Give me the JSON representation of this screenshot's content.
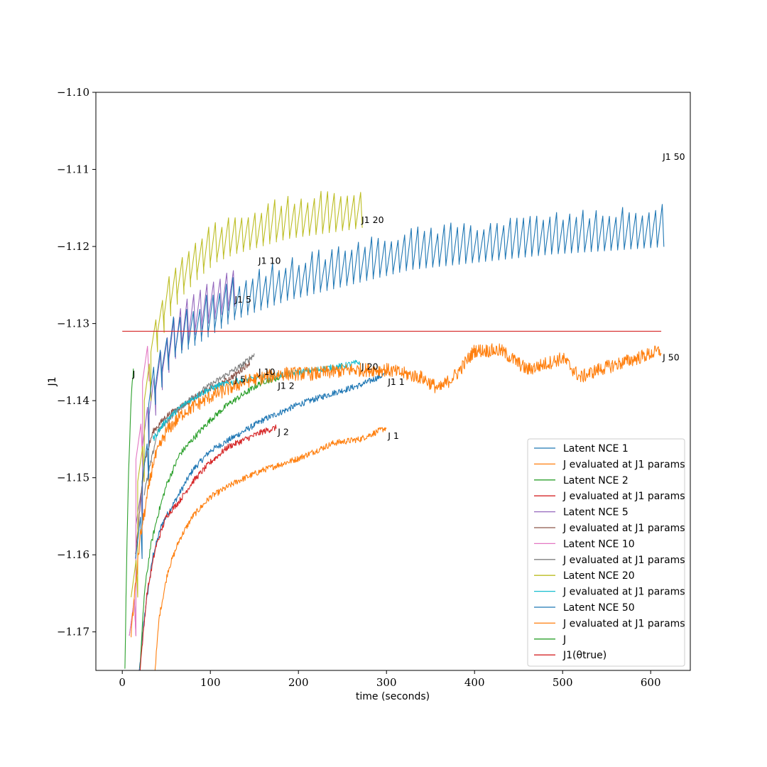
{
  "chart_data": {
    "type": "line",
    "title": "",
    "xlabel": "time (seconds)",
    "ylabel": "J1",
    "xlim": [
      -30,
      645
    ],
    "ylim": [
      -1.175,
      -1.1
    ],
    "x_ticks": [
      0,
      100,
      200,
      300,
      400,
      500,
      600
    ],
    "x_tick_labels": [
      "0",
      "100",
      "200",
      "300",
      "400",
      "500",
      "600"
    ],
    "y_ticks": [
      -1.17,
      -1.16,
      -1.15,
      -1.14,
      -1.13,
      -1.12,
      -1.11,
      -1.1
    ],
    "y_tick_labels": [
      "−1.17",
      "−1.16",
      "−1.15",
      "−1.14",
      "−1.13",
      "−1.12",
      "−1.11",
      "−1.10"
    ],
    "grid": false,
    "legend_position": "lower-right",
    "series": [
      {
        "name": "Latent NCE 1",
        "color": "#1f77b4",
        "style": "smooth",
        "x": [
          17,
          25,
          35,
          45,
          60,
          80,
          100,
          130,
          160,
          200,
          240,
          270,
          300
        ],
        "y": [
          -1.178,
          -1.168,
          -1.16,
          -1.156,
          -1.153,
          -1.149,
          -1.1465,
          -1.1445,
          -1.1425,
          -1.1405,
          -1.139,
          -1.138,
          -1.1365
        ]
      },
      {
        "name": "J evaluated at J1 params",
        "color": "#ff7f0e",
        "style": "smooth",
        "x": [
          35,
          42,
          52,
          65,
          80,
          100,
          130,
          160,
          200,
          240,
          270,
          300
        ],
        "y": [
          -1.178,
          -1.168,
          -1.162,
          -1.158,
          -1.155,
          -1.1525,
          -1.1505,
          -1.149,
          -1.1475,
          -1.1455,
          -1.145,
          -1.1435
        ]
      },
      {
        "name": "Latent NCE 2",
        "color": "#2ca02c",
        "style": "smooth",
        "x": [
          20,
          25,
          32,
          40,
          50,
          65,
          80,
          100,
          120,
          140,
          160,
          180
        ],
        "y": [
          -1.175,
          -1.165,
          -1.159,
          -1.155,
          -1.151,
          -1.147,
          -1.145,
          -1.1425,
          -1.1405,
          -1.139,
          -1.1375,
          -1.137
        ]
      },
      {
        "name": "J evaluated at J1 params",
        "color": "#d62728",
        "style": "smooth",
        "x": [
          20,
          28,
          38,
          50,
          65,
          80,
          100,
          120,
          140,
          160,
          175
        ],
        "y": [
          -1.175,
          -1.165,
          -1.159,
          -1.155,
          -1.153,
          -1.1505,
          -1.148,
          -1.146,
          -1.145,
          -1.144,
          -1.1435
        ]
      },
      {
        "name": "Latent NCE 5",
        "color": "#9467bd",
        "style": "saw",
        "x": [
          8,
          20,
          35,
          50,
          70,
          90,
          110,
          125
        ],
        "y": [
          -1.17,
          -1.147,
          -1.139,
          -1.1345,
          -1.1315,
          -1.1295,
          -1.128,
          -1.127
        ]
      },
      {
        "name": "J evaluated at J1 params",
        "color": "#8c564b",
        "style": "smooth",
        "x": [
          15,
          25,
          35,
          50,
          70,
          90,
          110,
          130,
          145
        ],
        "y": [
          -1.16,
          -1.148,
          -1.144,
          -1.142,
          -1.1405,
          -1.139,
          -1.138,
          -1.1365,
          -1.135
        ]
      },
      {
        "name": "Latent NCE 10",
        "color": "#e377c2",
        "style": "saw",
        "x": [
          8,
          12,
          16,
          20,
          25
        ],
        "y": [
          -1.17,
          -1.155,
          -1.146,
          -1.14,
          -1.135
        ]
      },
      {
        "name": "J evaluated at J1 params",
        "color": "#7f7f7f",
        "style": "smooth",
        "x": [
          25,
          40,
          60,
          80,
          100,
          120,
          135,
          150
        ],
        "y": [
          -1.152,
          -1.144,
          -1.1415,
          -1.1395,
          -1.138,
          -1.1365,
          -1.1355,
          -1.134
        ]
      },
      {
        "name": "Latent NCE 20",
        "color": "#bcbd22",
        "style": "saw",
        "x": [
          10,
          20,
          30,
          45,
          60,
          80,
          100,
          120,
          150,
          180,
          210,
          240,
          270
        ],
        "y": [
          -1.165,
          -1.145,
          -1.134,
          -1.129,
          -1.126,
          -1.1235,
          -1.1215,
          -1.1205,
          -1.1195,
          -1.1185,
          -1.118,
          -1.1175,
          -1.117
        ]
      },
      {
        "name": "J evaluated at J1 params",
        "color": "#17becf",
        "style": "smooth",
        "x": [
          35,
          50,
          70,
          90,
          110,
          130,
          160,
          190,
          220,
          250,
          270
        ],
        "y": [
          -1.145,
          -1.1425,
          -1.1405,
          -1.139,
          -1.138,
          -1.1375,
          -1.137,
          -1.1365,
          -1.136,
          -1.1355,
          -1.135
        ]
      },
      {
        "name": "Latent NCE 50",
        "color": "#1f77b4",
        "style": "saw",
        "x": [
          15,
          30,
          50,
          80,
          120,
          180,
          250,
          320,
          400,
          480,
          550,
          612
        ],
        "y": [
          -1.16,
          -1.14,
          -1.134,
          -1.132,
          -1.129,
          -1.1265,
          -1.1245,
          -1.1225,
          -1.1215,
          -1.1205,
          -1.12,
          -1.1195
        ]
      },
      {
        "name": "J evaluated at J1 params",
        "color": "#ff7f0e",
        "style": "noisy",
        "x": [
          10,
          20,
          35,
          50,
          70,
          100,
          140,
          180,
          220,
          260,
          300,
          340,
          360,
          380,
          400,
          430,
          460,
          500,
          520,
          540,
          570,
          612
        ],
        "y": [
          -1.17,
          -1.158,
          -1.148,
          -1.144,
          -1.1415,
          -1.1395,
          -1.1375,
          -1.1365,
          -1.1365,
          -1.136,
          -1.136,
          -1.137,
          -1.1385,
          -1.1365,
          -1.1335,
          -1.1335,
          -1.136,
          -1.1345,
          -1.137,
          -1.136,
          -1.135,
          -1.1335
        ]
      },
      {
        "name": "J",
        "color": "#2ca02c",
        "style": "smooth",
        "x": [
          3,
          5,
          7,
          9,
          11,
          13
        ],
        "y": [
          -1.175,
          -1.16,
          -1.15,
          -1.143,
          -1.138,
          -1.1355
        ]
      },
      {
        "name": "J1(θtrue)",
        "color": "#d62728",
        "style": "flat",
        "x": [
          0,
          612
        ],
        "y": [
          -1.131,
          -1.131
        ]
      }
    ],
    "annotations": [
      {
        "text": "J1 50",
        "x": 612,
        "y": -1.1083
      },
      {
        "text": "J1 20",
        "x": 270,
        "y": -1.1165
      },
      {
        "text": "J1 10",
        "x": 153,
        "y": -1.1218
      },
      {
        "text": "J1 5",
        "x": 126,
        "y": -1.1268
      },
      {
        "text": "J1 1",
        "x": 300,
        "y": -1.1375
      },
      {
        "text": "J1 2",
        "x": 175,
        "y": -1.138
      },
      {
        "text": "J 50",
        "x": 612,
        "y": -1.1343
      },
      {
        "text": "J 20",
        "x": 270,
        "y": -1.1355
      },
      {
        "text": "J 10",
        "x": 153,
        "y": -1.1362
      },
      {
        "text": "J 5",
        "x": 126,
        "y": -1.1372
      },
      {
        "text": "J 2",
        "x": 175,
        "y": -1.144
      },
      {
        "text": "J 1",
        "x": 300,
        "y": -1.1445
      },
      {
        "text": "J",
        "x": 10,
        "y": -1.1365
      }
    ],
    "legend": [
      {
        "label": "Latent NCE 1",
        "color": "#1f77b4"
      },
      {
        "label": "J evaluated at J1 params",
        "color": "#ff7f0e"
      },
      {
        "label": "Latent NCE 2",
        "color": "#2ca02c"
      },
      {
        "label": "J evaluated at J1 params",
        "color": "#d62728"
      },
      {
        "label": "Latent NCE 5",
        "color": "#9467bd"
      },
      {
        "label": "J evaluated at J1 params",
        "color": "#8c564b"
      },
      {
        "label": "Latent NCE 10",
        "color": "#e377c2"
      },
      {
        "label": "J evaluated at J1 params",
        "color": "#7f7f7f"
      },
      {
        "label": "Latent NCE 20",
        "color": "#bcbd22"
      },
      {
        "label": "J evaluated at J1 params",
        "color": "#17becf"
      },
      {
        "label": "Latent NCE 50",
        "color": "#1f77b4"
      },
      {
        "label": "J evaluated at J1 params",
        "color": "#ff7f0e"
      },
      {
        "label": "J",
        "color": "#2ca02c"
      },
      {
        "label": "J1(θtrue)",
        "color": "#d62728"
      }
    ]
  }
}
